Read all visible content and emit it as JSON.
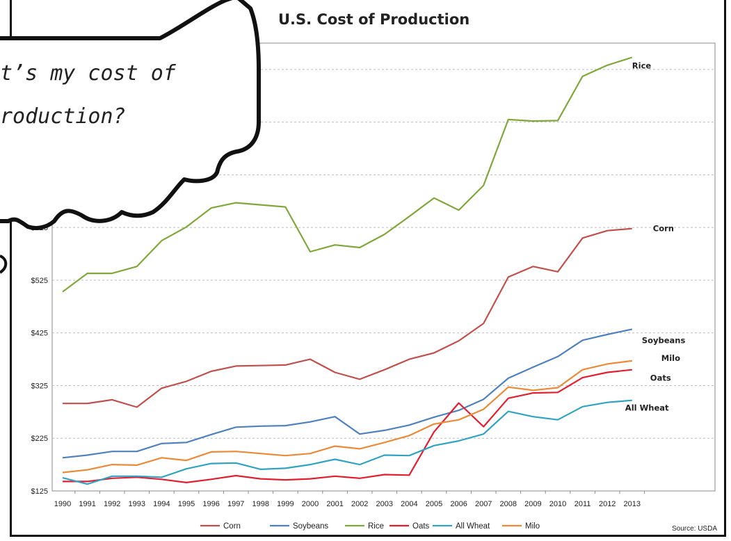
{
  "bubble": {
    "line1": "t’s my cost of",
    "line2": "roduction?"
  },
  "source": "Source: USDA",
  "chart_data": {
    "type": "line",
    "title": "U.S. Cost of Production",
    "xlabel": "",
    "ylabel": "",
    "categories": [
      "1990",
      "1991",
      "1992",
      "1993",
      "1994",
      "1995",
      "1996",
      "1997",
      "1998",
      "1999",
      "2000",
      "2001",
      "2002",
      "2003",
      "2004",
      "2005",
      "2006",
      "2007",
      "2008",
      "2009",
      "2010",
      "2011",
      "2012",
      "2013"
    ],
    "yticks": [
      "$125",
      "$225",
      "$325",
      "$425",
      "$525",
      "$625"
    ],
    "ylim": [
      125,
      975
    ],
    "grid": true,
    "legend_position": "bottom",
    "series": [
      {
        "name": "Corn",
        "color": "#c0504d",
        "values": [
          291,
          291,
          298,
          284,
          320,
          333,
          352,
          362,
          363,
          364,
          375,
          350,
          337,
          355,
          375,
          387,
          410,
          443,
          531,
          551,
          541,
          605,
          619,
          623
        ]
      },
      {
        "name": "Soybeans",
        "color": "#4f81bd",
        "values": [
          188,
          193,
          200,
          200,
          215,
          217,
          232,
          246,
          248,
          249,
          256,
          266,
          233,
          240,
          250,
          265,
          278,
          299,
          339,
          360,
          380,
          411,
          422,
          432
        ]
      },
      {
        "name": "Rice",
        "color": "#7fa73a",
        "values": [
          503,
          538,
          538,
          551,
          600,
          626,
          662,
          672,
          668,
          664,
          579,
          592,
          587,
          612,
          646,
          681,
          658,
          705,
          830,
          827,
          828,
          912,
          933,
          948
        ]
      },
      {
        "name": "Oats",
        "color": "#e02030",
        "values": [
          143,
          143,
          149,
          151,
          147,
          141,
          147,
          154,
          148,
          146,
          148,
          153,
          149,
          156,
          155,
          237,
          292,
          247,
          301,
          311,
          312,
          340,
          350,
          355
        ]
      },
      {
        "name": "All Wheat",
        "color": "#31a3c2",
        "values": [
          150,
          138,
          153,
          153,
          151,
          167,
          177,
          178,
          166,
          168,
          175,
          185,
          175,
          193,
          192,
          211,
          220,
          233,
          276,
          266,
          260,
          285,
          293,
          297
        ]
      },
      {
        "name": "Milo",
        "color": "#e98b39",
        "values": [
          160,
          165,
          175,
          174,
          188,
          183,
          199,
          200,
          196,
          192,
          196,
          210,
          205,
          217,
          230,
          252,
          260,
          280,
          322,
          316,
          321,
          355,
          366,
          372
        ]
      }
    ]
  }
}
